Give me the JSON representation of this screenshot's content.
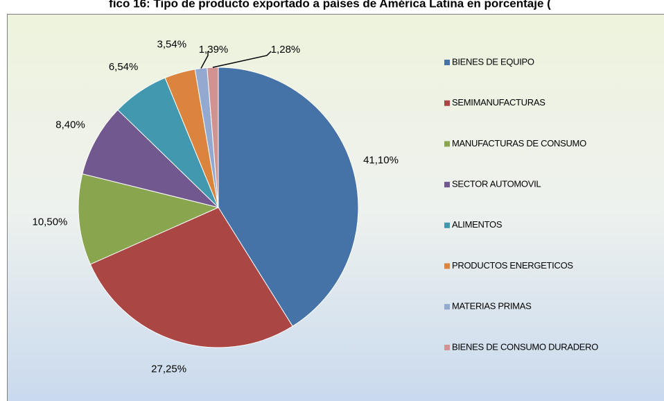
{
  "chart_data": {
    "type": "pie",
    "title": "fico 16: Tipo de producto exportado a países de América Latina en porcentaje (",
    "categories": [
      "BIENES DE EQUIPO",
      "SEMIMANUFACTURAS",
      "MANUFACTURAS DE CONSUMO",
      "SECTOR AUTOMOVIL",
      "ALIMENTOS",
      "PRODUCTOS ENERGETICOS",
      "MATERIAS PRIMAS",
      "BIENES DE CONSUMO DURADERO"
    ],
    "values": [
      41.1,
      27.25,
      10.5,
      8.4,
      6.54,
      3.54,
      1.39,
      1.28
    ],
    "value_labels": [
      "41,10%",
      "27,25%",
      "10,50%",
      "8,40%",
      "6,54%",
      "3,54%",
      "1,39%",
      "1,28%"
    ],
    "colors": [
      "#4572a7",
      "#aa4643",
      "#89a54e",
      "#71588f",
      "#4198af",
      "#db843d",
      "#93a9cf",
      "#d19392"
    ],
    "legend": "right"
  }
}
